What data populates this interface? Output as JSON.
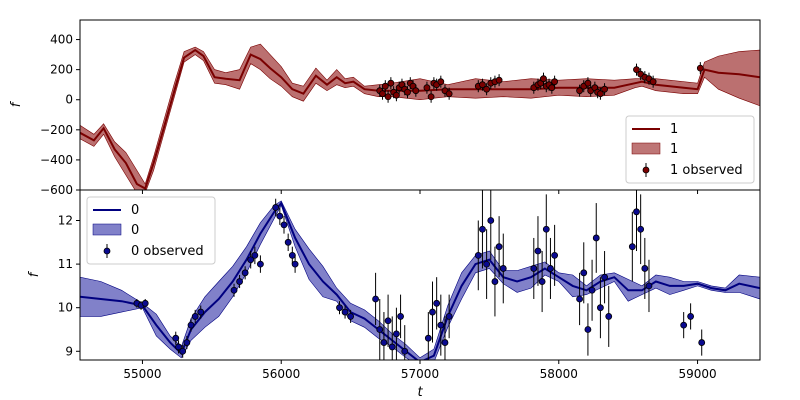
{
  "figure": {
    "xlabel": "t"
  },
  "chart_data": [
    {
      "type": "line",
      "panel": "top",
      "ylabel": "f",
      "xlim": [
        54550,
        59450
      ],
      "ylim": [
        -600,
        530
      ],
      "xticks": [
        55000,
        56000,
        57000,
        58000,
        59000
      ],
      "yticks": [
        -600,
        -400,
        -200,
        0,
        200,
        400
      ],
      "ytick_labels": [
        "−600",
        "−400",
        "−200",
        "0",
        "200",
        "400"
      ],
      "show_xtick_labels": false,
      "colors": {
        "line": "#7a0000",
        "band": "#a84848",
        "marker": "#7a0000"
      },
      "legend": {
        "position": "lower-right",
        "entries": [
          "1",
          "1",
          "1 observed"
        ]
      },
      "series": [
        {
          "kind": "mean",
          "x": [
            54550,
            54650,
            54720,
            54800,
            54880,
            54960,
            55020,
            55080,
            55150,
            55230,
            55300,
            55380,
            55440,
            55520,
            55600,
            55700,
            55780,
            55850,
            55920,
            56000,
            56080,
            56160,
            56250,
            56330,
            56400,
            56460,
            56520,
            56600,
            56700,
            56800,
            57000,
            57200,
            57400,
            57600,
            57800,
            58000,
            58200,
            58400,
            58550,
            58600,
            58700,
            58800,
            58900,
            59000,
            59050,
            59150,
            59300,
            59450
          ],
          "y": [
            -220,
            -270,
            -190,
            -330,
            -420,
            -560,
            -590,
            -420,
            -200,
            60,
            280,
            330,
            290,
            150,
            140,
            130,
            300,
            270,
            210,
            150,
            70,
            40,
            160,
            100,
            150,
            110,
            120,
            70,
            60,
            60,
            60,
            70,
            70,
            70,
            70,
            80,
            80,
            80,
            110,
            120,
            100,
            90,
            80,
            70,
            200,
            180,
            170,
            150
          ]
        },
        {
          "kind": "band",
          "x": [
            54550,
            54650,
            54720,
            54800,
            54880,
            54960,
            55020,
            55080,
            55150,
            55230,
            55300,
            55380,
            55440,
            55520,
            55600,
            55700,
            55780,
            55850,
            55920,
            56000,
            56080,
            56160,
            56250,
            56330,
            56400,
            56460,
            56520,
            56600,
            56700,
            56800,
            57000,
            57200,
            57400,
            57600,
            57800,
            58000,
            58200,
            58400,
            58550,
            58600,
            58700,
            58800,
            58900,
            59000,
            59050,
            59150,
            59300,
            59450
          ],
          "upper": [
            -170,
            -230,
            -160,
            -280,
            -350,
            -470,
            -560,
            -380,
            -150,
            110,
            320,
            350,
            320,
            200,
            180,
            200,
            350,
            370,
            300,
            220,
            110,
            90,
            210,
            130,
            200,
            140,
            150,
            90,
            100,
            110,
            140,
            100,
            140,
            120,
            140,
            130,
            140,
            130,
            140,
            140,
            140,
            130,
            120,
            110,
            250,
            290,
            320,
            330
          ],
          "lower": [
            -260,
            -310,
            -230,
            -380,
            -500,
            -620,
            -620,
            -470,
            -240,
            20,
            250,
            300,
            260,
            110,
            100,
            70,
            240,
            200,
            140,
            90,
            20,
            -10,
            110,
            60,
            100,
            80,
            90,
            40,
            20,
            20,
            0,
            20,
            10,
            20,
            10,
            30,
            20,
            30,
            80,
            90,
            60,
            50,
            40,
            40,
            150,
            70,
            10,
            -40
          ]
        },
        {
          "kind": "observed",
          "x": [
            56710,
            56730,
            56750,
            56770,
            56790,
            56810,
            56830,
            56850,
            56870,
            56890,
            56910,
            56930,
            56950,
            56970,
            57050,
            57080,
            57100,
            57120,
            57150,
            57180,
            57210,
            57420,
            57450,
            57480,
            57510,
            57540,
            57570,
            57820,
            57850,
            57870,
            57890,
            57910,
            57930,
            57950,
            57970,
            58150,
            58180,
            58210,
            58230,
            58260,
            58280,
            58300,
            58330,
            58560,
            58590,
            58620,
            58650,
            58680,
            59020
          ],
          "y": [
            60,
            40,
            90,
            20,
            110,
            50,
            30,
            80,
            100,
            70,
            50,
            110,
            90,
            60,
            80,
            20,
            110,
            100,
            120,
            60,
            40,
            90,
            100,
            70,
            110,
            120,
            130,
            80,
            100,
            110,
            140,
            90,
            100,
            80,
            120,
            60,
            90,
            110,
            60,
            80,
            50,
            40,
            70,
            200,
            170,
            150,
            140,
            120,
            210
          ],
          "yerr": [
            40,
            40,
            40,
            40,
            40,
            40,
            40,
            40,
            40,
            40,
            40,
            40,
            40,
            40,
            40,
            40,
            40,
            40,
            40,
            40,
            40,
            40,
            40,
            40,
            40,
            40,
            40,
            40,
            40,
            40,
            40,
            40,
            40,
            40,
            40,
            40,
            40,
            40,
            40,
            40,
            40,
            40,
            40,
            40,
            40,
            40,
            40,
            40,
            40
          ]
        }
      ]
    },
    {
      "type": "line",
      "panel": "bottom",
      "ylabel": "f",
      "xlim": [
        54550,
        59450
      ],
      "ylim": [
        8.8,
        12.7
      ],
      "xticks": [
        55000,
        56000,
        57000,
        58000,
        59000
      ],
      "xtick_labels": [
        "55000",
        "56000",
        "57000",
        "58000",
        "59000"
      ],
      "yticks": [
        9,
        10,
        11,
        12
      ],
      "ytick_labels": [
        "9",
        "10",
        "11",
        "12"
      ],
      "colors": {
        "line": "#000080",
        "band": "#6b6bc0",
        "marker": "#0a0a90"
      },
      "legend": {
        "position": "top-left",
        "entries": [
          "0",
          "0",
          "0 observed"
        ]
      },
      "series": [
        {
          "kind": "mean",
          "x": [
            54550,
            54700,
            54850,
            55000,
            55100,
            55200,
            55280,
            55350,
            55450,
            55550,
            55650,
            55750,
            55850,
            55950,
            56000,
            56100,
            56200,
            56300,
            56400,
            56500,
            56600,
            56700,
            56800,
            56900,
            57000,
            57100,
            57200,
            57300,
            57400,
            57500,
            57600,
            57700,
            57800,
            57900,
            58000,
            58100,
            58200,
            58300,
            58400,
            58500,
            58600,
            58700,
            58800,
            58900,
            59000,
            59100,
            59200,
            59300,
            59450
          ],
          "y": [
            10.25,
            10.2,
            10.15,
            10.05,
            9.6,
            9.2,
            8.95,
            9.5,
            9.9,
            10.2,
            10.6,
            11.1,
            11.7,
            12.2,
            12.4,
            11.6,
            11.0,
            10.6,
            10.3,
            9.9,
            9.75,
            9.5,
            9.25,
            9.0,
            8.75,
            8.9,
            9.8,
            10.5,
            11.0,
            11.1,
            10.7,
            10.6,
            10.7,
            10.9,
            10.7,
            10.5,
            10.4,
            10.6,
            10.7,
            10.4,
            10.4,
            10.6,
            10.5,
            10.5,
            10.55,
            10.45,
            10.4,
            10.55,
            10.45
          ]
        },
        {
          "kind": "band",
          "x": [
            54550,
            54700,
            54850,
            55000,
            55100,
            55200,
            55280,
            55350,
            55450,
            55550,
            55650,
            55750,
            55850,
            55950,
            56000,
            56100,
            56200,
            56300,
            56400,
            56500,
            56600,
            56700,
            56800,
            56900,
            57000,
            57100,
            57200,
            57300,
            57400,
            57500,
            57600,
            57700,
            57800,
            57900,
            58000,
            58100,
            58200,
            58300,
            58400,
            58500,
            58600,
            58700,
            58800,
            58900,
            59000,
            59100,
            59200,
            59300,
            59450
          ],
          "upper": [
            10.7,
            10.6,
            10.4,
            10.1,
            9.85,
            9.35,
            9.1,
            9.75,
            10.25,
            10.6,
            10.95,
            11.4,
            11.95,
            12.35,
            12.45,
            11.8,
            11.35,
            10.95,
            10.45,
            10.1,
            9.95,
            9.7,
            9.4,
            9.15,
            8.85,
            9.05,
            10.05,
            10.8,
            11.2,
            11.3,
            10.85,
            10.85,
            10.95,
            11.05,
            10.8,
            10.75,
            10.5,
            10.75,
            10.8,
            10.65,
            10.5,
            10.75,
            10.7,
            10.6,
            10.6,
            10.5,
            10.45,
            10.75,
            10.7
          ],
          "lower": [
            9.8,
            9.8,
            9.9,
            10.0,
            9.35,
            9.05,
            8.85,
            9.25,
            9.55,
            9.8,
            10.25,
            10.8,
            11.45,
            12.05,
            12.35,
            11.4,
            10.65,
            10.25,
            10.15,
            9.7,
            9.55,
            9.3,
            9.1,
            8.85,
            8.65,
            8.75,
            9.55,
            10.2,
            10.8,
            10.9,
            10.55,
            10.35,
            10.45,
            10.75,
            10.6,
            10.25,
            10.3,
            10.45,
            10.6,
            10.15,
            10.3,
            10.45,
            10.3,
            10.4,
            10.5,
            10.4,
            10.35,
            10.35,
            10.2
          ]
        },
        {
          "kind": "observed",
          "x": [
            54960,
            54990,
            55020,
            55240,
            55260,
            55290,
            55320,
            55350,
            55380,
            55420,
            55660,
            55700,
            55740,
            55780,
            55810,
            55850,
            55960,
            55990,
            56020,
            56050,
            56080,
            56100,
            56420,
            56460,
            56500,
            56680,
            56710,
            56740,
            56770,
            56800,
            56830,
            56860,
            56890,
            57060,
            57090,
            57120,
            57150,
            57180,
            57210,
            57420,
            57450,
            57480,
            57510,
            57540,
            57570,
            57600,
            57820,
            57850,
            57880,
            57910,
            57940,
            57970,
            58150,
            58180,
            58210,
            58240,
            58270,
            58300,
            58330,
            58360,
            58530,
            58560,
            58590,
            58620,
            58650,
            58900,
            58950,
            59030
          ],
          "y": [
            10.1,
            10.05,
            10.1,
            9.3,
            9.1,
            9.0,
            9.2,
            9.6,
            9.8,
            9.9,
            10.4,
            10.6,
            10.8,
            11.1,
            11.2,
            11.0,
            12.3,
            12.1,
            11.9,
            11.5,
            11.2,
            11.0,
            10.0,
            9.9,
            9.8,
            10.2,
            9.5,
            9.2,
            9.7,
            9.1,
            9.4,
            9.8,
            9.0,
            9.3,
            9.9,
            10.1,
            9.6,
            9.2,
            9.8,
            11.2,
            11.8,
            11.0,
            12.0,
            10.6,
            11.4,
            10.9,
            10.9,
            11.3,
            10.6,
            11.8,
            10.9,
            11.2,
            10.2,
            10.8,
            9.5,
            10.4,
            11.6,
            10.0,
            10.7,
            9.8,
            11.4,
            12.2,
            11.8,
            10.9,
            10.5,
            9.6,
            9.8,
            9.2
          ],
          "yerr": [
            0.1,
            0.1,
            0.1,
            0.15,
            0.15,
            0.15,
            0.15,
            0.15,
            0.15,
            0.15,
            0.15,
            0.15,
            0.15,
            0.2,
            0.2,
            0.2,
            0.2,
            0.2,
            0.2,
            0.2,
            0.2,
            0.2,
            0.15,
            0.15,
            0.15,
            0.6,
            0.7,
            0.7,
            0.6,
            0.7,
            0.6,
            0.5,
            0.6,
            0.6,
            0.7,
            0.6,
            0.7,
            0.6,
            0.5,
            0.8,
            0.9,
            0.8,
            0.9,
            0.8,
            0.7,
            0.8,
            0.7,
            0.8,
            0.7,
            0.8,
            0.7,
            0.7,
            0.6,
            0.7,
            0.6,
            0.7,
            0.8,
            0.7,
            0.6,
            0.7,
            0.8,
            0.9,
            0.8,
            0.7,
            0.6,
            0.3,
            0.3,
            0.3
          ]
        }
      ]
    }
  ]
}
